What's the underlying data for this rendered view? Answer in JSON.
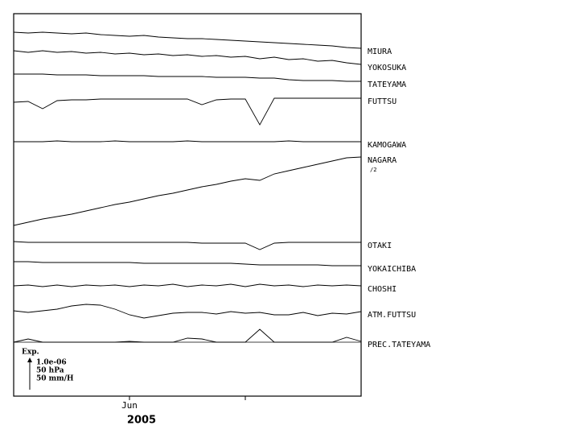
{
  "chart_data": {
    "type": "line",
    "xlabel": "2005",
    "x": [
      0,
      2.5,
      5,
      7.5,
      10,
      12.5,
      15,
      17.5,
      20,
      22.5,
      25,
      27.5,
      30,
      32.5,
      35,
      37.5,
      40,
      42.5,
      45,
      47.5,
      50,
      52.5,
      55,
      57.5,
      60
    ],
    "xlim": [
      0,
      60
    ],
    "xticks": [
      {
        "value": 20,
        "label": "Jun"
      },
      {
        "value": 40,
        "label": null
      }
    ],
    "ylim": [
      0,
      475
    ],
    "series": [
      {
        "name": "MIURA",
        "color": "#000000",
        "values": [
          452,
          451,
          452,
          451,
          450,
          451,
          449,
          448,
          447,
          448,
          446,
          445,
          444,
          444,
          443,
          442,
          441,
          440,
          439,
          438,
          437,
          436,
          435,
          433,
          432
        ]
      },
      {
        "name": "YOKOSUKA",
        "color": "#000000",
        "values": [
          429,
          427,
          429,
          427,
          428,
          426,
          427,
          425,
          426,
          424,
          425,
          423,
          424,
          422,
          423,
          421,
          422,
          419,
          421,
          418,
          419,
          416,
          417,
          414,
          412
        ]
      },
      {
        "name": "TATEYAMA",
        "color": "#000000",
        "values": [
          400,
          400,
          400,
          399,
          399,
          399,
          398,
          398,
          398,
          398,
          397,
          397,
          397,
          397,
          396,
          396,
          396,
          395,
          395,
          393,
          392,
          392,
          392,
          391,
          391
        ]
      },
      {
        "name": "FUTTSU",
        "color": "#000000",
        "values": [
          365,
          366,
          357,
          367,
          368,
          368,
          369,
          369,
          369,
          369,
          369,
          369,
          369,
          362,
          368,
          369,
          369,
          337,
          370,
          370,
          370,
          370,
          370,
          370,
          370
        ]
      },
      {
        "name": "KAMOGAWA",
        "color": "#000000",
        "values": [
          316,
          316,
          316,
          317,
          316,
          316,
          316,
          317,
          316,
          316,
          316,
          316,
          317,
          316,
          316,
          316,
          316,
          316,
          316,
          317,
          316,
          316,
          316,
          316,
          316
        ]
      },
      {
        "name": "NAGARA",
        "note": "/2",
        "color": "#000000",
        "values": [
          212,
          216,
          220,
          223,
          226,
          230,
          234,
          238,
          241,
          245,
          249,
          252,
          256,
          260,
          263,
          267,
          270,
          268,
          276,
          280,
          284,
          288,
          292,
          296,
          297
        ]
      },
      {
        "name": "OTAKI",
        "color": "#000000",
        "values": [
          192,
          191,
          191,
          191,
          191,
          191,
          191,
          191,
          191,
          191,
          191,
          191,
          191,
          190,
          190,
          190,
          190,
          182,
          190,
          191,
          191,
          191,
          191,
          191,
          191
        ]
      },
      {
        "name": "YOKAICHIBA",
        "color": "#000000",
        "values": [
          167,
          167,
          166,
          166,
          166,
          166,
          166,
          166,
          166,
          165,
          165,
          165,
          165,
          165,
          165,
          165,
          164,
          163,
          163,
          163,
          163,
          163,
          162,
          162,
          162
        ]
      },
      {
        "name": "CHOSHI",
        "color": "#000000",
        "values": [
          137,
          138,
          136,
          138,
          136,
          138,
          137,
          138,
          136,
          138,
          137,
          139,
          136,
          138,
          137,
          139,
          136,
          139,
          137,
          138,
          136,
          138,
          137,
          138,
          137
        ]
      },
      {
        "name": "ATM.FUTTSU",
        "color": "#000000",
        "values": [
          106,
          104,
          106,
          108,
          112,
          114,
          113,
          108,
          101,
          97,
          100,
          103,
          104,
          104,
          102,
          105,
          103,
          104,
          101,
          101,
          104,
          100,
          103,
          102,
          105
        ]
      },
      {
        "name": "PREC.TATEYAMA",
        "color": "#000000",
        "values": [
          67,
          71,
          67,
          67,
          67,
          67,
          67,
          67,
          68,
          67,
          67,
          67,
          72,
          71,
          67,
          67,
          67,
          83,
          67,
          67,
          67,
          67,
          67,
          73,
          68
        ]
      }
    ],
    "scale_title": "Exp.",
    "scale_labels": [
      "1.0e-06",
      "50 hPa",
      "50 mm/H"
    ]
  }
}
